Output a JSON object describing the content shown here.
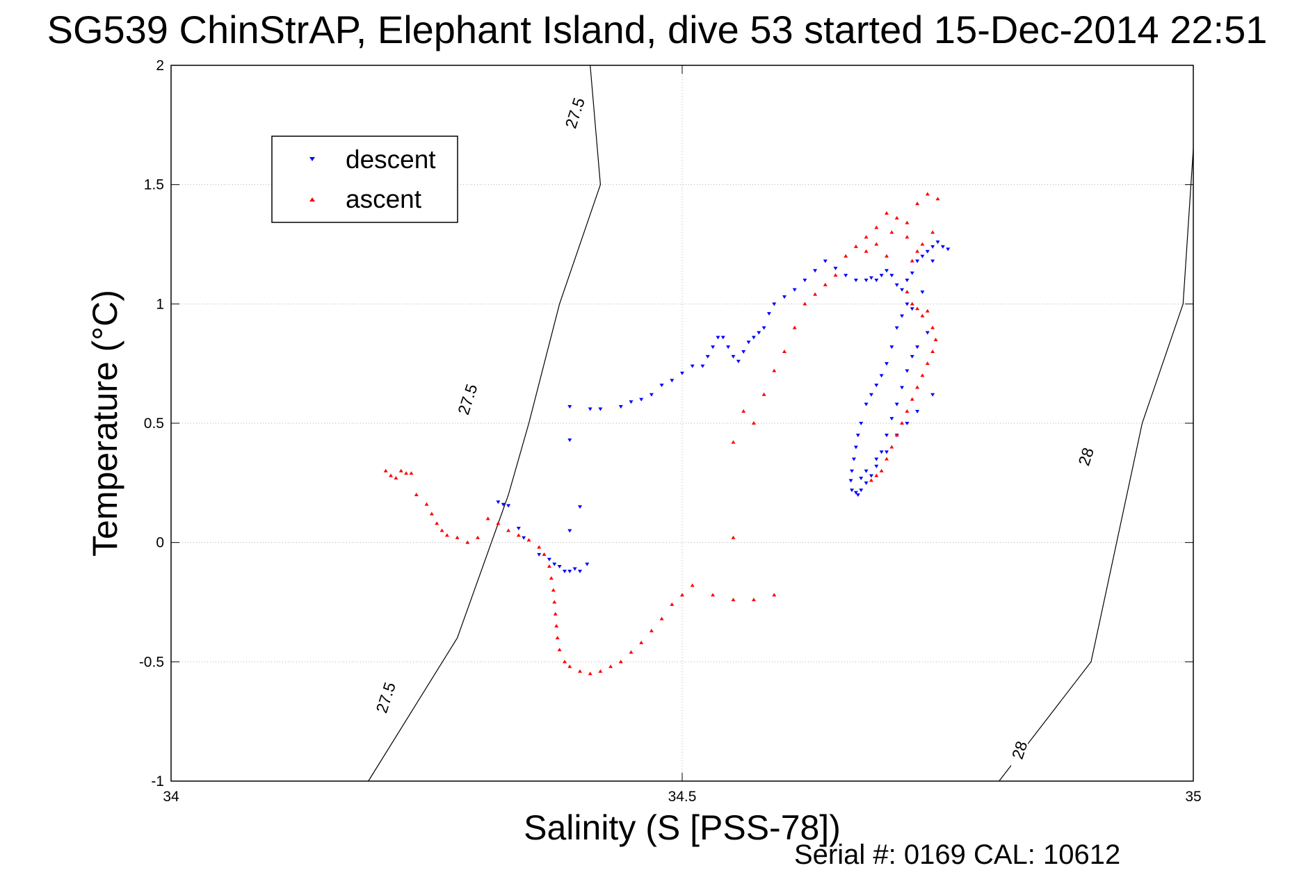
{
  "chart_data": {
    "type": "scatter",
    "title": "SG539 ChinStrAP, Elephant Island, dive 53 started 15-Dec-2014 22:51",
    "xlabel": "Salinity (S [PSS-78])",
    "ylabel": "Temperature (°C)",
    "xlim": [
      34,
      35
    ],
    "ylim": [
      -1,
      2
    ],
    "xticks": [
      34,
      34.5,
      35
    ],
    "xtick_labels": [
      "34",
      "34.5",
      "35"
    ],
    "yticks": [
      -1,
      -0.5,
      0,
      0.5,
      1,
      1.5,
      2
    ],
    "ytick_labels": [
      "-1",
      "-0.5",
      "0",
      "0.5",
      "1",
      "1.5",
      "2"
    ],
    "grid": true,
    "legend_position": "top-left",
    "footer_text": "Serial #: 0169 CAL: 10612",
    "density_contours": [
      {
        "label": "27.5",
        "points": [
          [
            34.193,
            -1.0
          ],
          [
            34.28,
            -0.4
          ],
          [
            34.33,
            0.2
          ],
          [
            34.35,
            0.5
          ],
          [
            34.38,
            1.0
          ],
          [
            34.42,
            1.5
          ],
          [
            34.41,
            2.0
          ]
        ],
        "label_positions": [
          [
            34.21,
            -0.65
          ],
          [
            34.29,
            0.6
          ],
          [
            34.395,
            1.8
          ]
        ]
      },
      {
        "label": "28",
        "points": [
          [
            34.81,
            -1.0
          ],
          [
            34.9,
            -0.5
          ],
          [
            34.95,
            0.5
          ],
          [
            34.99,
            1.0
          ],
          [
            35.0,
            1.65
          ]
        ],
        "label_positions": [
          [
            34.83,
            -0.87
          ],
          [
            34.895,
            0.36
          ]
        ]
      }
    ],
    "series": [
      {
        "name": "descent",
        "color": "#0000ff",
        "marker": "triangle-down",
        "points": [
          [
            34.32,
            0.17
          ],
          [
            34.325,
            0.16
          ],
          [
            34.33,
            0.155
          ],
          [
            34.34,
            0.06
          ],
          [
            34.345,
            0.02
          ],
          [
            34.36,
            -0.05
          ],
          [
            34.37,
            -0.07
          ],
          [
            34.375,
            -0.09
          ],
          [
            34.38,
            -0.1
          ],
          [
            34.385,
            -0.12
          ],
          [
            34.39,
            -0.12
          ],
          [
            34.395,
            -0.11
          ],
          [
            34.4,
            -0.12
          ],
          [
            34.407,
            -0.09
          ],
          [
            34.4,
            0.15
          ],
          [
            34.39,
            0.05
          ],
          [
            34.39,
            0.57
          ],
          [
            34.39,
            0.43
          ],
          [
            34.41,
            0.56
          ],
          [
            34.42,
            0.56
          ],
          [
            34.44,
            0.57
          ],
          [
            34.45,
            0.59
          ],
          [
            34.46,
            0.6
          ],
          [
            34.47,
            0.62
          ],
          [
            34.48,
            0.66
          ],
          [
            34.49,
            0.68
          ],
          [
            34.5,
            0.71
          ],
          [
            34.51,
            0.74
          ],
          [
            34.52,
            0.74
          ],
          [
            34.525,
            0.78
          ],
          [
            34.53,
            0.82
          ],
          [
            34.535,
            0.86
          ],
          [
            34.54,
            0.86
          ],
          [
            34.545,
            0.82
          ],
          [
            34.55,
            0.78
          ],
          [
            34.555,
            0.76
          ],
          [
            34.56,
            0.8
          ],
          [
            34.565,
            0.84
          ],
          [
            34.57,
            0.86
          ],
          [
            34.575,
            0.88
          ],
          [
            34.58,
            0.9
          ],
          [
            34.585,
            0.96
          ],
          [
            34.59,
            1.0
          ],
          [
            34.6,
            1.03
          ],
          [
            34.61,
            1.06
          ],
          [
            34.62,
            1.1
          ],
          [
            34.63,
            1.14
          ],
          [
            34.64,
            1.18
          ],
          [
            34.65,
            1.15
          ],
          [
            34.66,
            1.12
          ],
          [
            34.67,
            1.1
          ],
          [
            34.68,
            1.1
          ],
          [
            34.685,
            1.11
          ],
          [
            34.69,
            1.1
          ],
          [
            34.695,
            1.12
          ],
          [
            34.7,
            1.14
          ],
          [
            34.705,
            1.12
          ],
          [
            34.71,
            1.08
          ],
          [
            34.715,
            1.06
          ],
          [
            34.72,
            1.1
          ],
          [
            34.725,
            1.13
          ],
          [
            34.73,
            1.18
          ],
          [
            34.735,
            1.2
          ],
          [
            34.74,
            1.22
          ],
          [
            34.745,
            1.24
          ],
          [
            34.75,
            1.26
          ],
          [
            34.755,
            1.24
          ],
          [
            34.76,
            1.23
          ],
          [
            34.745,
            1.18
          ],
          [
            34.735,
            1.05
          ],
          [
            34.725,
            0.98
          ],
          [
            34.72,
            1.0
          ],
          [
            34.715,
            0.95
          ],
          [
            34.71,
            0.9
          ],
          [
            34.705,
            0.82
          ],
          [
            34.7,
            0.75
          ],
          [
            34.695,
            0.7
          ],
          [
            34.69,
            0.66
          ],
          [
            34.685,
            0.62
          ],
          [
            34.68,
            0.58
          ],
          [
            34.675,
            0.5
          ],
          [
            34.672,
            0.45
          ],
          [
            34.67,
            0.4
          ],
          [
            34.668,
            0.35
          ],
          [
            34.666,
            0.3
          ],
          [
            34.665,
            0.26
          ],
          [
            34.666,
            0.22
          ],
          [
            34.67,
            0.21
          ],
          [
            34.672,
            0.2
          ],
          [
            34.675,
            0.22
          ],
          [
            34.68,
            0.25
          ],
          [
            34.685,
            0.28
          ],
          [
            34.69,
            0.32
          ],
          [
            34.695,
            0.38
          ],
          [
            34.7,
            0.45
          ],
          [
            34.705,
            0.52
          ],
          [
            34.71,
            0.58
          ],
          [
            34.715,
            0.65
          ],
          [
            34.72,
            0.72
          ],
          [
            34.725,
            0.78
          ],
          [
            34.73,
            0.82
          ],
          [
            34.74,
            0.88
          ],
          [
            34.745,
            0.62
          ],
          [
            34.73,
            0.55
          ],
          [
            34.72,
            0.5
          ],
          [
            34.71,
            0.45
          ],
          [
            34.7,
            0.38
          ],
          [
            34.69,
            0.35
          ],
          [
            34.68,
            0.3
          ],
          [
            34.675,
            0.27
          ]
        ]
      },
      {
        "name": "ascent",
        "color": "#ff0000",
        "marker": "triangle-up",
        "points": [
          [
            34.21,
            0.3
          ],
          [
            34.215,
            0.28
          ],
          [
            34.22,
            0.27
          ],
          [
            34.225,
            0.3
          ],
          [
            34.23,
            0.29
          ],
          [
            34.235,
            0.29
          ],
          [
            34.24,
            0.2
          ],
          [
            34.25,
            0.16
          ],
          [
            34.255,
            0.12
          ],
          [
            34.26,
            0.08
          ],
          [
            34.265,
            0.05
          ],
          [
            34.27,
            0.03
          ],
          [
            34.28,
            0.02
          ],
          [
            34.29,
            0.0
          ],
          [
            34.3,
            0.02
          ],
          [
            34.31,
            0.1
          ],
          [
            34.32,
            0.08
          ],
          [
            34.33,
            0.05
          ],
          [
            34.34,
            0.03
          ],
          [
            34.35,
            0.01
          ],
          [
            34.36,
            -0.02
          ],
          [
            34.365,
            -0.05
          ],
          [
            34.37,
            -0.1
          ],
          [
            34.372,
            -0.15
          ],
          [
            34.374,
            -0.2
          ],
          [
            34.375,
            -0.25
          ],
          [
            34.376,
            -0.3
          ],
          [
            34.377,
            -0.35
          ],
          [
            34.378,
            -0.4
          ],
          [
            34.38,
            -0.45
          ],
          [
            34.385,
            -0.5
          ],
          [
            34.39,
            -0.52
          ],
          [
            34.4,
            -0.54
          ],
          [
            34.41,
            -0.55
          ],
          [
            34.42,
            -0.54
          ],
          [
            34.43,
            -0.52
          ],
          [
            34.44,
            -0.5
          ],
          [
            34.45,
            -0.46
          ],
          [
            34.46,
            -0.42
          ],
          [
            34.47,
            -0.37
          ],
          [
            34.48,
            -0.32
          ],
          [
            34.49,
            -0.26
          ],
          [
            34.5,
            -0.22
          ],
          [
            34.51,
            -0.18
          ],
          [
            34.53,
            -0.22
          ],
          [
            34.55,
            -0.24
          ],
          [
            34.57,
            -0.24
          ],
          [
            34.59,
            -0.22
          ],
          [
            34.55,
            0.02
          ],
          [
            34.55,
            0.42
          ],
          [
            34.56,
            0.55
          ],
          [
            34.57,
            0.5
          ],
          [
            34.58,
            0.62
          ],
          [
            34.59,
            0.72
          ],
          [
            34.6,
            0.8
          ],
          [
            34.61,
            0.9
          ],
          [
            34.62,
            1.0
          ],
          [
            34.63,
            1.04
          ],
          [
            34.64,
            1.08
          ],
          [
            34.65,
            1.12
          ],
          [
            34.66,
            1.2
          ],
          [
            34.67,
            1.24
          ],
          [
            34.68,
            1.28
          ],
          [
            34.69,
            1.32
          ],
          [
            34.7,
            1.38
          ],
          [
            34.71,
            1.36
          ],
          [
            34.72,
            1.34
          ],
          [
            34.73,
            1.42
          ],
          [
            34.74,
            1.46
          ],
          [
            34.75,
            1.44
          ],
          [
            34.745,
            1.3
          ],
          [
            34.735,
            1.25
          ],
          [
            34.73,
            1.22
          ],
          [
            34.725,
            1.18
          ],
          [
            34.72,
            1.05
          ],
          [
            34.725,
            1.0
          ],
          [
            34.73,
            0.98
          ],
          [
            34.735,
            0.95
          ],
          [
            34.74,
            0.97
          ],
          [
            34.745,
            0.9
          ],
          [
            34.748,
            0.85
          ],
          [
            34.745,
            0.8
          ],
          [
            34.74,
            0.75
          ],
          [
            34.735,
            0.7
          ],
          [
            34.73,
            0.65
          ],
          [
            34.725,
            0.6
          ],
          [
            34.72,
            0.55
          ],
          [
            34.715,
            0.5
          ],
          [
            34.71,
            0.45
          ],
          [
            34.705,
            0.4
          ],
          [
            34.7,
            0.35
          ],
          [
            34.695,
            0.3
          ],
          [
            34.69,
            0.28
          ],
          [
            34.685,
            0.26
          ],
          [
            34.7,
            1.2
          ],
          [
            34.69,
            1.25
          ],
          [
            34.68,
            1.22
          ],
          [
            34.72,
            1.28
          ],
          [
            34.705,
            1.3
          ]
        ]
      }
    ]
  }
}
